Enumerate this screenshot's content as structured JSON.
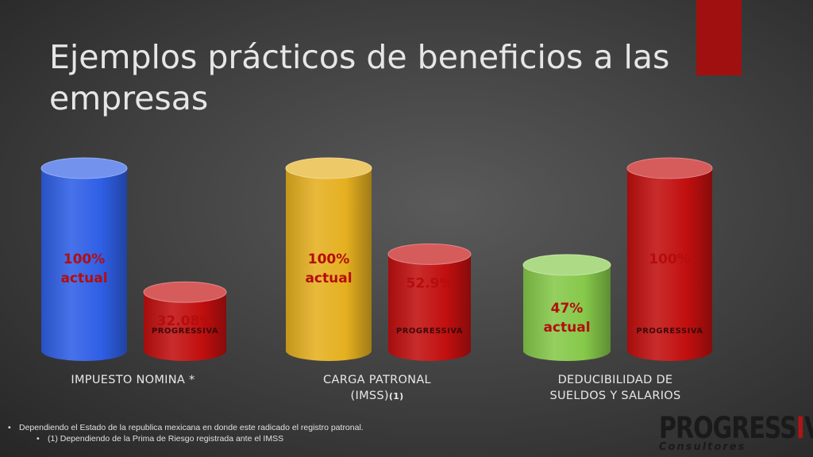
{
  "title": "Ejemplos prácticos de beneficios a las empresas",
  "colors": {
    "blue": "#2f5fe6",
    "yellow": "#e5b020",
    "green": "#86c94a",
    "red": "#c20f0f",
    "accent": "#a01010",
    "value_text": "#b40d0d"
  },
  "chart_data": {
    "type": "bar",
    "style": "3d-cylinder",
    "ylim": [
      0,
      100
    ],
    "groups": [
      {
        "category": "IMPUESTO  NOMINA *",
        "category_note": "",
        "bars": [
          {
            "value": 100,
            "label": "100%",
            "sublabel": "actual",
            "color": "#2f5fe6"
          },
          {
            "value": 32.08,
            "label": "32.08%",
            "sublabel": "",
            "color": "#c20f0f",
            "watermark": "PROGRESSIVA"
          }
        ]
      },
      {
        "category": "CARGA PATRONAL (IMSS)",
        "category_note": "(1)",
        "bars": [
          {
            "value": 100,
            "label": "100%",
            "sublabel": "actual",
            "color": "#e5b020"
          },
          {
            "value": 52.9,
            "label": "52.9%",
            "sublabel": "",
            "color": "#c20f0f",
            "watermark": "PROGRESSIVA"
          }
        ]
      },
      {
        "category": "DEDUCIBILIDAD DE SUELDOS Y SALARIOS",
        "category_note": "",
        "bars": [
          {
            "value": 47,
            "label": "47%",
            "sublabel": "actual",
            "color": "#86c94a"
          },
          {
            "value": 100,
            "label": "100%",
            "sublabel": "",
            "color": "#c20f0f",
            "watermark": "PROGRESSIVA"
          }
        ]
      }
    ]
  },
  "footnotes": [
    "Dependiendo el Estado de la republica mexicana en donde este radicado el registro patronal.",
    "(1)  Dependiendo de la Prima de Riesgo registrada ante el IMSS"
  ],
  "logo": {
    "word_a": "PROGRESS",
    "word_i": "I",
    "word_b": "VA",
    "sub": "Consultores"
  }
}
